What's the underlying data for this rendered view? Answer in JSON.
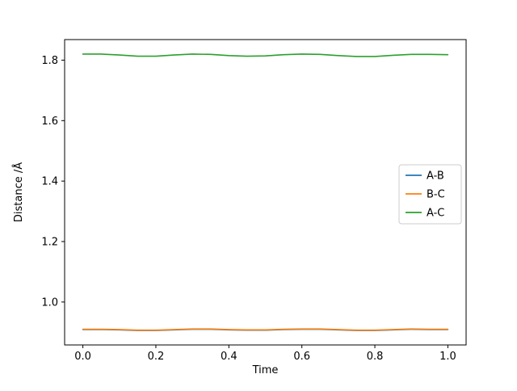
{
  "chart_data": {
    "type": "line",
    "title": "",
    "xlabel": "Time",
    "ylabel": "Distance /Å",
    "xlim": [
      -0.05,
      1.05
    ],
    "ylim": [
      0.858,
      1.868
    ],
    "xticks": [
      0.0,
      0.2,
      0.4,
      0.6,
      0.8,
      1.0
    ],
    "xtick_labels": [
      "0.0",
      "0.2",
      "0.4",
      "0.6",
      "0.8",
      "1.0"
    ],
    "yticks": [
      1.0,
      1.2,
      1.4,
      1.6,
      1.8
    ],
    "ytick_labels": [
      "1.0",
      "1.2",
      "1.4",
      "1.6",
      "1.8"
    ],
    "grid": false,
    "legend_position": "center-right",
    "x": [
      0.0,
      0.05,
      0.1,
      0.15,
      0.2,
      0.25,
      0.3,
      0.35,
      0.4,
      0.45,
      0.5,
      0.55,
      0.6,
      0.65,
      0.7,
      0.75,
      0.8,
      0.85,
      0.9,
      0.95,
      1.0
    ],
    "series": [
      {
        "name": "A-B",
        "color": "#1f77b4",
        "values": [
          0.909,
          0.909,
          0.908,
          0.906,
          0.906,
          0.908,
          0.91,
          0.91,
          0.908,
          0.907,
          0.907,
          0.909,
          0.91,
          0.91,
          0.908,
          0.906,
          0.906,
          0.908,
          0.91,
          0.909,
          0.909
        ]
      },
      {
        "name": "B-C",
        "color": "#ff7f0e",
        "values": [
          0.91,
          0.91,
          0.909,
          0.907,
          0.907,
          0.909,
          0.911,
          0.911,
          0.909,
          0.908,
          0.908,
          0.91,
          0.911,
          0.911,
          0.909,
          0.907,
          0.907,
          0.909,
          0.911,
          0.91,
          0.91
        ]
      },
      {
        "name": "A-C",
        "color": "#2ca02c",
        "values": [
          1.82,
          1.82,
          1.817,
          1.813,
          1.813,
          1.817,
          1.82,
          1.819,
          1.815,
          1.813,
          1.814,
          1.818,
          1.82,
          1.819,
          1.815,
          1.812,
          1.812,
          1.816,
          1.819,
          1.819,
          1.818
        ]
      }
    ],
    "legend_entries": [
      "A-B",
      "B-C",
      "A-C"
    ]
  },
  "layout_colors": {
    "axes_edge": "#000000",
    "legend_border": "#cccccc",
    "background": "#ffffff"
  }
}
